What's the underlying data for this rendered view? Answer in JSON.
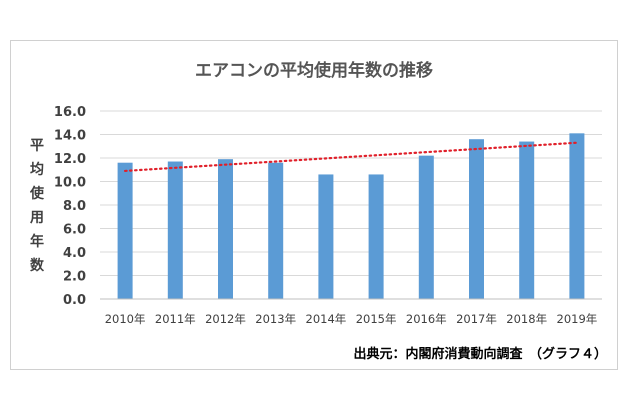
{
  "chart_data": {
    "type": "bar",
    "title": "エアコンの平均使用年数の推移",
    "ylabel": "平均使用年数",
    "xlabel": "",
    "categories": [
      "2010年",
      "2011年",
      "2012年",
      "2013年",
      "2014年",
      "2015年",
      "2016年",
      "2017年",
      "2018年",
      "2019年"
    ],
    "values": [
      11.6,
      11.7,
      11.9,
      11.6,
      10.6,
      10.6,
      12.2,
      13.6,
      13.4,
      14.1
    ],
    "ylim": [
      0,
      16
    ],
    "yticks": [
      "0.0",
      "2.0",
      "4.0",
      "6.0",
      "8.0",
      "10.0",
      "12.0",
      "14.0",
      "16.0"
    ],
    "grid": true,
    "trendline": {
      "style": "dotted",
      "color": "#e0202a",
      "start": 10.9,
      "end": 13.3
    },
    "bar_color": "#5b9bd5"
  },
  "source_note": "出典元：内閣府消費動向調査　（グラフ４）"
}
